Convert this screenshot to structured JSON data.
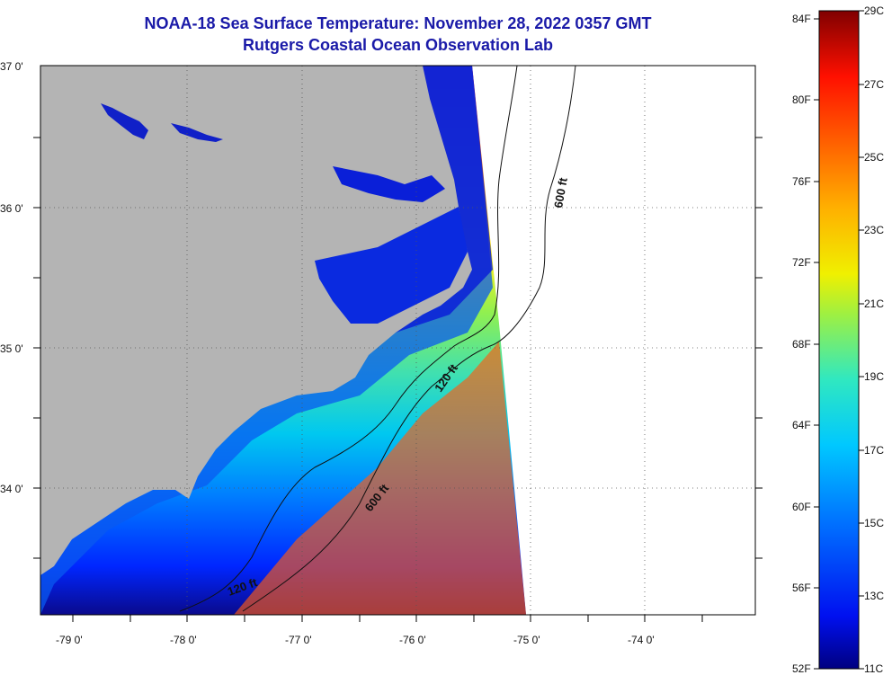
{
  "title": {
    "line1": "NOAA-18 Sea Surface Temperature:  November 28, 2022 0357 GMT",
    "line2": "Rutgers Coastal Ocean Observation Lab"
  },
  "axes": {
    "x_ticks": [
      "-79 0'",
      "-78 0'",
      "-77 0'",
      "-76 0'",
      "-75 0'",
      "-74 0'"
    ],
    "y_ticks": [
      "37 0'",
      "36 0'",
      "35 0'",
      "34 0'"
    ]
  },
  "contours": {
    "c600_north": "600 ft",
    "c600_south": "600 ft",
    "c120_north": "120 ft",
    "c120_south": "120 ft"
  },
  "colorbar": {
    "f_labels": [
      "84F",
      "80F",
      "76F",
      "72F",
      "68F",
      "64F",
      "60F",
      "56F",
      "52F"
    ],
    "c_labels": [
      "29C",
      "27C",
      "25C",
      "23C",
      "21C",
      "19C",
      "17C",
      "15C",
      "13C",
      "11C"
    ]
  },
  "colors": {
    "land": "#b4b4b4",
    "title": "#1a1aa8",
    "no_data": "#ffffff"
  }
}
